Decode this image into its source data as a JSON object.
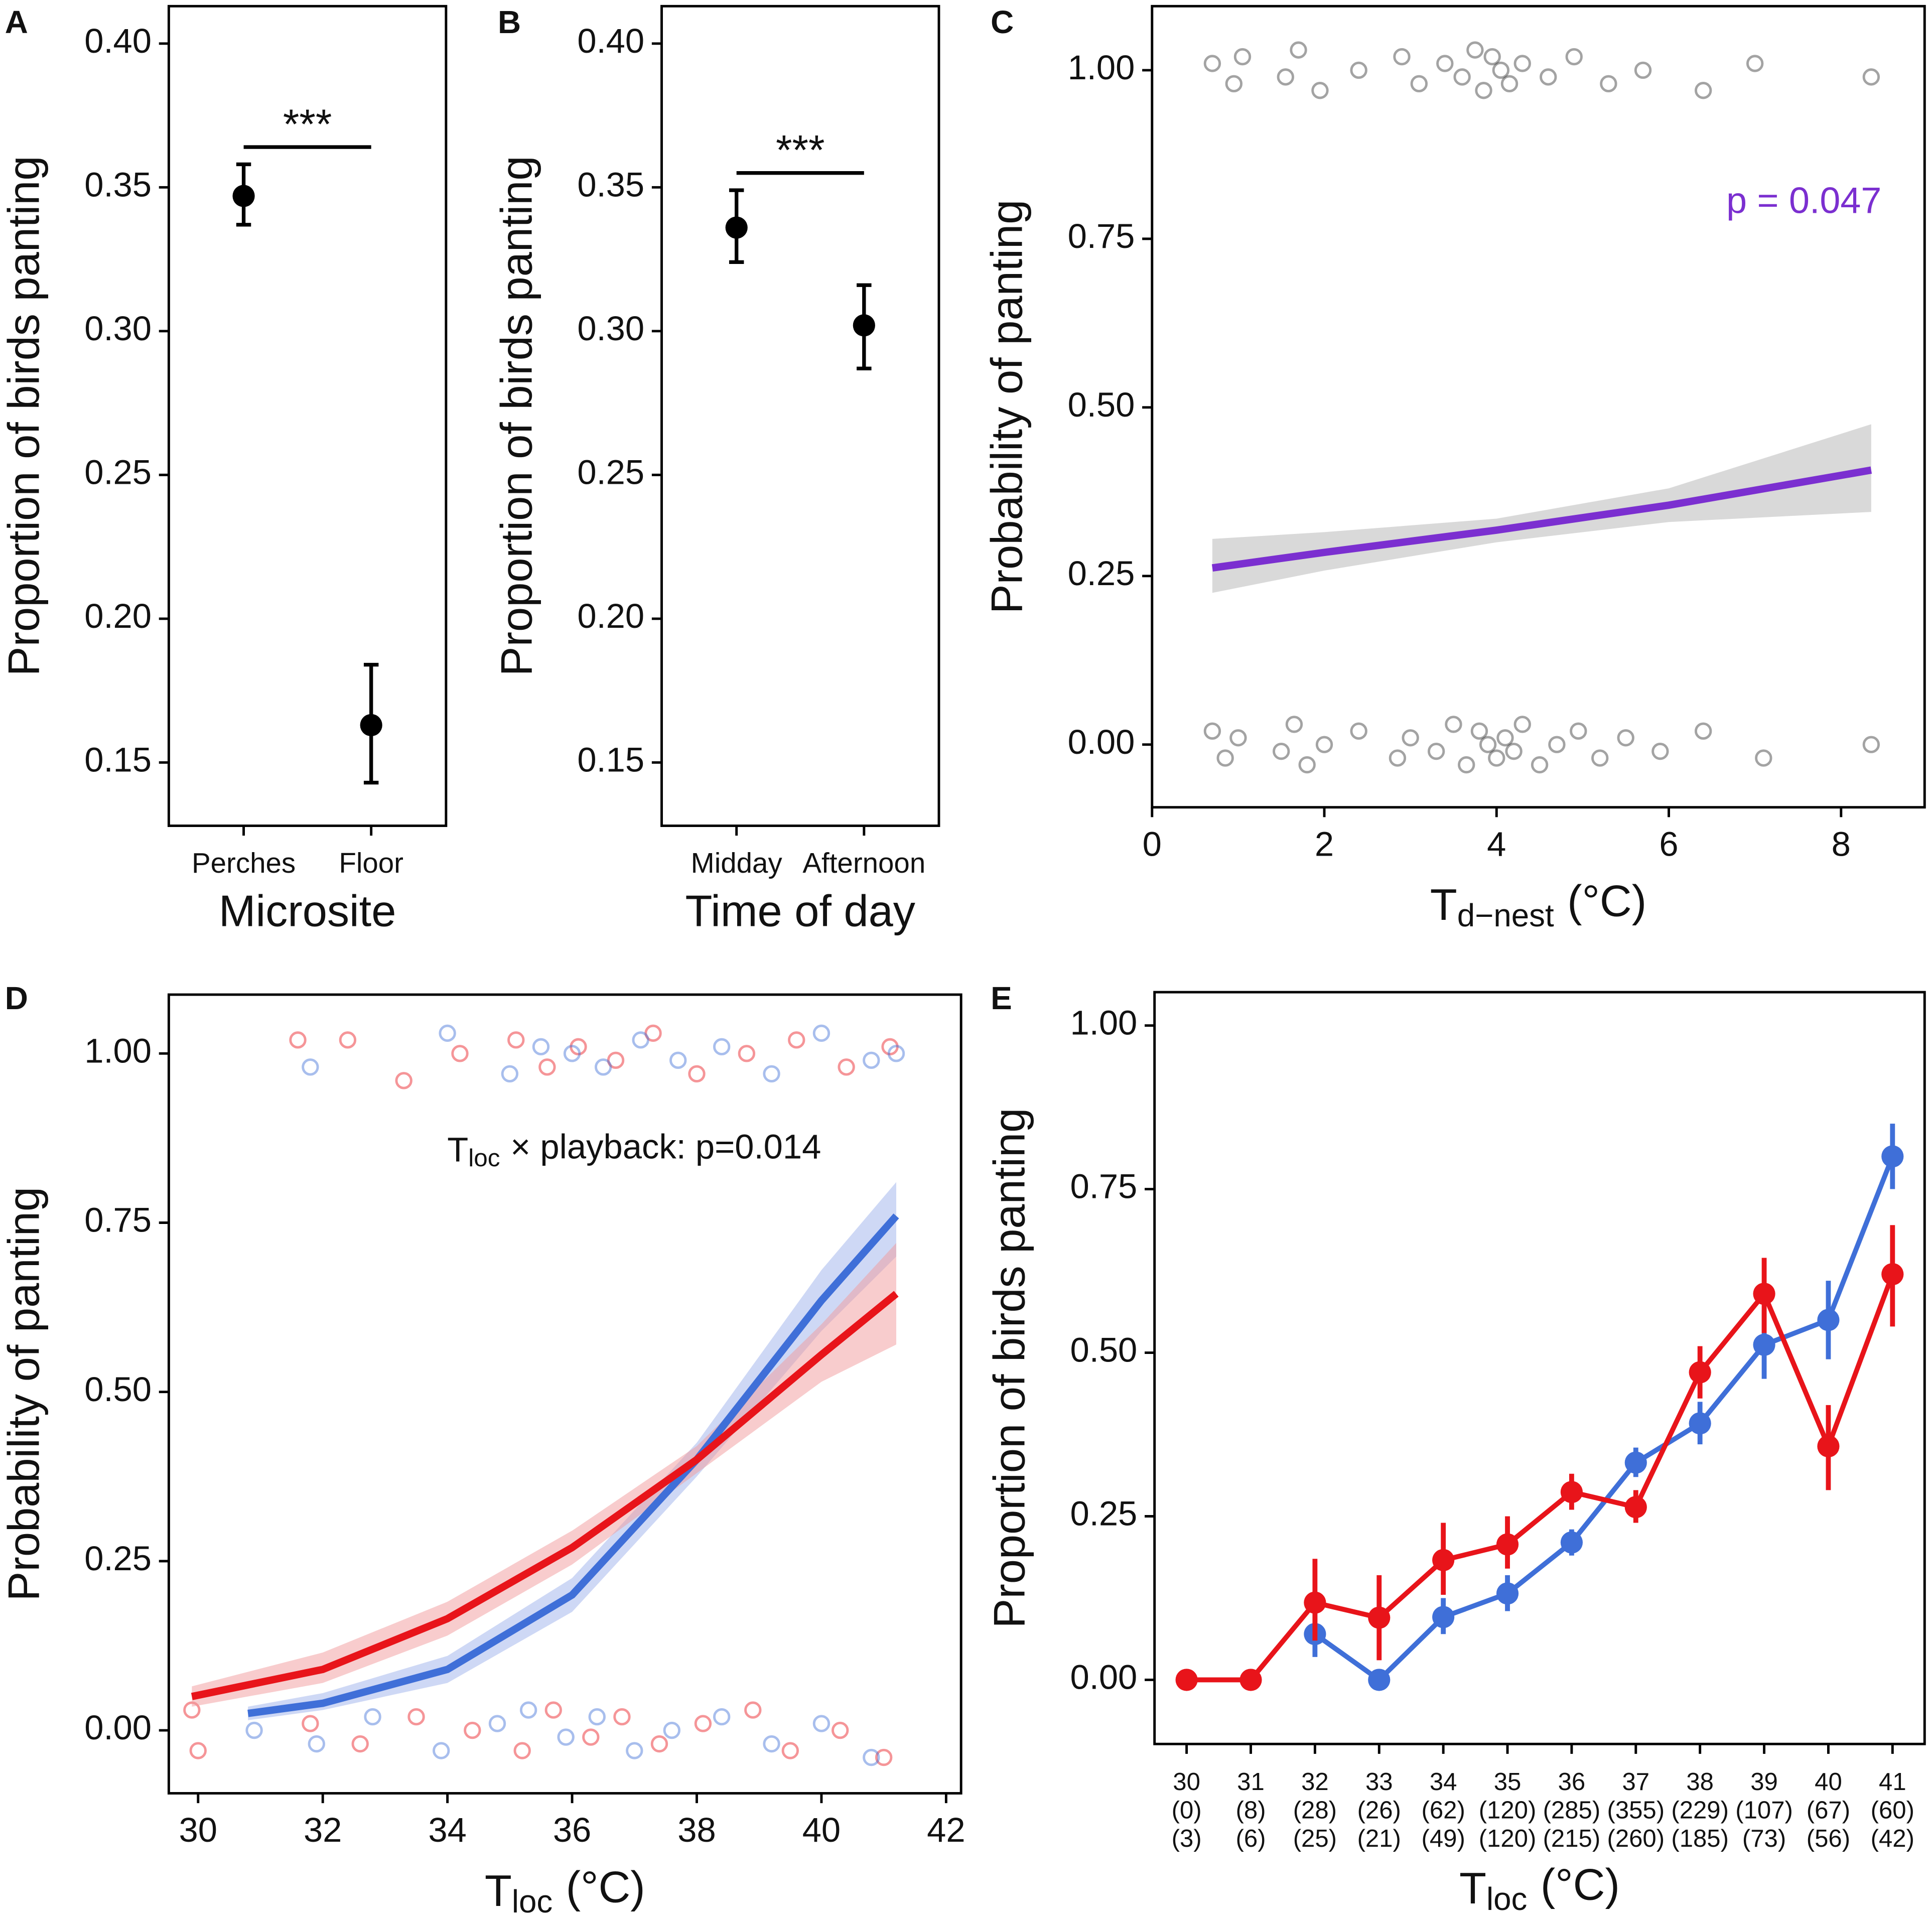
{
  "chart_data": [
    {
      "type": "pointrange",
      "panel_label": "A",
      "categories": [
        "Perches",
        "Floor"
      ],
      "values": [
        0.347,
        0.163
      ],
      "lower": [
        0.337,
        0.143
      ],
      "upper": [
        0.358,
        0.184
      ],
      "color": "#000000",
      "annotation": "***",
      "xlabel": "Microsite",
      "ylabel": "Proportion of birds panting",
      "ylim": [
        0.128,
        0.413
      ],
      "yticks": [
        {
          "value": 0.15,
          "label": "0.15"
        },
        {
          "value": 0.2,
          "label": "0.20"
        },
        {
          "value": 0.25,
          "label": "0.25"
        },
        {
          "value": 0.3,
          "label": "0.30"
        },
        {
          "value": 0.35,
          "label": "0.35"
        },
        {
          "value": 0.4,
          "label": "0.40"
        }
      ]
    },
    {
      "type": "pointrange",
      "panel_label": "B",
      "categories": [
        "Midday",
        "Afternoon"
      ],
      "values": [
        0.336,
        0.302
      ],
      "lower": [
        0.324,
        0.287
      ],
      "upper": [
        0.349,
        0.316
      ],
      "color": "#000000",
      "annotation": "***",
      "xlabel": "Time of day",
      "ylabel": "Proportion of birds panting",
      "ylim": [
        0.128,
        0.413
      ],
      "yticks": [
        {
          "value": 0.15,
          "label": "0.15"
        },
        {
          "value": 0.2,
          "label": "0.20"
        },
        {
          "value": 0.25,
          "label": "0.25"
        },
        {
          "value": 0.3,
          "label": "0.30"
        },
        {
          "value": 0.35,
          "label": "0.35"
        },
        {
          "value": 0.4,
          "label": "0.40"
        }
      ]
    },
    {
      "type": "logistic",
      "panel_label": "C",
      "xlabel": {
        "main": "T",
        "sub": "d−nest",
        "unit": "(°C)"
      },
      "ylabel": "Probability of panting",
      "xlim": [
        0,
        8.97
      ],
      "xticks": [
        0,
        2,
        4,
        6,
        8
      ],
      "ylim": [
        -0.093,
        1.095
      ],
      "yticks": [
        {
          "value": 0,
          "label": "0.00"
        },
        {
          "value": 0.25,
          "label": "0.25"
        },
        {
          "value": 0.5,
          "label": "0.50"
        },
        {
          "value": 0.75,
          "label": "0.75"
        },
        {
          "value": 1,
          "label": "1.00"
        }
      ],
      "annotation": "p = 0.047",
      "annotation_color": "#7b2fd0",
      "points": [
        {
          "color": "#333333",
          "x": [
            0.7,
            0.95,
            1.05,
            1.55,
            1.7,
            1.95,
            2.4,
            2.9,
            3.1,
            3.4,
            3.6,
            3.75,
            3.85,
            3.95,
            4.05,
            4.15,
            4.3,
            4.6,
            4.9,
            5.3,
            5.7,
            6.4,
            7.0,
            8.35,
            0.7,
            0.85,
            1.0,
            1.5,
            1.65,
            1.8,
            2.0,
            2.4,
            2.85,
            3.0,
            3.3,
            3.5,
            3.65,
            3.8,
            3.9,
            4.0,
            4.1,
            4.2,
            4.3,
            4.5,
            4.7,
            4.95,
            5.2,
            5.5,
            5.9,
            6.4,
            7.1,
            8.35
          ],
          "values": [
            1.01,
            0.98,
            1.02,
            0.99,
            1.03,
            0.97,
            1.0,
            1.02,
            0.98,
            1.01,
            0.99,
            1.03,
            0.97,
            1.02,
            1.0,
            0.98,
            1.01,
            0.99,
            1.02,
            0.98,
            1.0,
            0.97,
            1.01,
            0.99,
            0.02,
            -0.02,
            0.01,
            -0.01,
            0.03,
            -0.03,
            0.0,
            0.02,
            -0.02,
            0.01,
            -0.01,
            0.03,
            -0.03,
            0.02,
            0.0,
            -0.02,
            0.01,
            -0.01,
            0.03,
            -0.03,
            0.0,
            0.02,
            -0.02,
            0.01,
            -0.01,
            0.02,
            -0.02,
            0.0
          ]
        }
      ],
      "fits": [
        {
          "color": "#7b2fd0",
          "band_color": "#b3b3b3",
          "x": [
            0.7,
            2,
            4,
            6,
            8.35
          ],
          "values": [
            0.262,
            0.285,
            0.318,
            0.355,
            0.407
          ],
          "lower": [
            0.225,
            0.258,
            0.3,
            0.33,
            0.345
          ],
          "upper": [
            0.305,
            0.315,
            0.335,
            0.38,
            0.475
          ]
        }
      ]
    },
    {
      "type": "logistic",
      "panel_label": "D",
      "xlabel": {
        "main": "T",
        "sub": "loc",
        "unit": "(°C)"
      },
      "ylabel": "Probability of panting",
      "xlim": [
        29.53,
        42.24
      ],
      "xticks": [
        30,
        32,
        34,
        36,
        38,
        40,
        42
      ],
      "ylim": [
        -0.093,
        1.087
      ],
      "yticks": [
        {
          "value": 0,
          "label": "0.00"
        },
        {
          "value": 0.25,
          "label": "0.25"
        },
        {
          "value": 0.5,
          "label": "0.50"
        },
        {
          "value": 0.75,
          "label": "0.75"
        },
        {
          "value": 1,
          "label": "1.00"
        }
      ],
      "annotation": {
        "main": "T",
        "sub": "loc",
        "unit": "× playback: p=0.014"
      },
      "points": [
        {
          "color": "#e8141a",
          "x": [
            31.6,
            32.4,
            33.3,
            34.2,
            35.1,
            35.6,
            36.1,
            36.7,
            37.3,
            38.0,
            38.8,
            39.6,
            40.4,
            41.1,
            29.9,
            30.0,
            31.8,
            32.6,
            33.5,
            34.4,
            35.2,
            35.7,
            36.3,
            36.8,
            37.4,
            38.1,
            38.9,
            39.5,
            40.3,
            41.0
          ],
          "values": [
            1.02,
            1.02,
            0.96,
            1.0,
            1.02,
            0.98,
            1.01,
            0.99,
            1.03,
            0.97,
            1.0,
            1.02,
            0.98,
            1.01,
            0.03,
            -0.03,
            0.01,
            -0.02,
            0.02,
            0.0,
            -0.03,
            0.03,
            -0.01,
            0.02,
            -0.02,
            0.01,
            0.03,
            -0.03,
            0.0,
            -0.04
          ]
        },
        {
          "color": "#3f6fd8",
          "x": [
            31.8,
            34.0,
            35.0,
            35.5,
            36.0,
            36.5,
            37.1,
            37.7,
            38.4,
            39.2,
            40.0,
            40.8,
            41.2,
            30.9,
            31.9,
            32.8,
            33.9,
            34.8,
            35.3,
            35.9,
            36.4,
            37.0,
            37.6,
            38.4,
            39.2,
            40.0,
            40.8
          ],
          "values": [
            0.98,
            1.03,
            0.97,
            1.01,
            1.0,
            0.98,
            1.02,
            0.99,
            1.01,
            0.97,
            1.03,
            0.99,
            1.0,
            0.0,
            -0.02,
            0.02,
            -0.03,
            0.01,
            0.03,
            -0.01,
            0.02,
            -0.03,
            0.0,
            0.02,
            -0.02,
            0.01,
            -0.04
          ]
        }
      ],
      "fits": [
        {
          "color": "#3f6fd8",
          "band_color": "#9db2ec",
          "x": [
            30.8,
            32,
            34,
            36,
            38,
            40,
            41.2
          ],
          "values": [
            0.025,
            0.04,
            0.09,
            0.2,
            0.4,
            0.635,
            0.76
          ],
          "lower": [
            0.015,
            0.03,
            0.07,
            0.175,
            0.375,
            0.59,
            0.7
          ],
          "upper": [
            0.035,
            0.055,
            0.11,
            0.225,
            0.425,
            0.68,
            0.81
          ]
        },
        {
          "color": "#e8141a",
          "band_color": "#f19a9c",
          "x": [
            29.9,
            32,
            34,
            36,
            38,
            40,
            41.2
          ],
          "values": [
            0.05,
            0.09,
            0.165,
            0.27,
            0.4,
            0.555,
            0.645
          ],
          "lower": [
            0.035,
            0.07,
            0.14,
            0.245,
            0.38,
            0.515,
            0.57
          ],
          "upper": [
            0.065,
            0.115,
            0.19,
            0.295,
            0.42,
            0.6,
            0.72
          ]
        }
      ]
    },
    {
      "type": "line",
      "panel_label": "E",
      "categories": [
        "30",
        "31",
        "32",
        "33",
        "34",
        "35",
        "36",
        "37",
        "38",
        "39",
        "40",
        "41"
      ],
      "category_counts": [
        [
          "(0)",
          "(3)"
        ],
        [
          "(8)",
          "(6)"
        ],
        [
          "(28)",
          "(25)"
        ],
        [
          "(26)",
          "(21)"
        ],
        [
          "(62)",
          "(49)"
        ],
        [
          "(120)",
          "(120)"
        ],
        [
          "(285)",
          "(215)"
        ],
        [
          "(355)",
          "(260)"
        ],
        [
          "(229)",
          "(185)"
        ],
        [
          "(107)",
          "(73)"
        ],
        [
          "(67)",
          "(56)"
        ],
        [
          "(60)",
          "(42)"
        ]
      ],
      "xlabel": {
        "main": "T",
        "sub": "loc",
        "unit": "(°C)"
      },
      "ylabel": "Proportion of birds panting",
      "ylim": [
        -0.098,
        1.051
      ],
      "yticks": [
        {
          "value": 0,
          "label": "0.00"
        },
        {
          "value": 0.25,
          "label": "0.25"
        },
        {
          "value": 0.5,
          "label": "0.50"
        },
        {
          "value": 0.75,
          "label": "0.75"
        },
        {
          "value": 1,
          "label": "1.00"
        }
      ],
      "series": [
        {
          "color": "#3f6fd8",
          "values": [
            null,
            null,
            0.07,
            0.0,
            0.096,
            0.132,
            0.21,
            0.332,
            0.392,
            0.512,
            0.55,
            0.8
          ],
          "lower": [
            null,
            null,
            0.035,
            0.0,
            0.07,
            0.105,
            0.19,
            0.31,
            0.36,
            0.46,
            0.49,
            0.75
          ],
          "upper": [
            null,
            null,
            0.115,
            0.0,
            0.125,
            0.16,
            0.23,
            0.355,
            0.425,
            0.565,
            0.61,
            0.85
          ]
        },
        {
          "color": "#e8141a",
          "values": [
            0,
            0,
            0.118,
            0.095,
            0.183,
            0.207,
            0.287,
            0.264,
            0.47,
            0.59,
            0.357,
            0.62
          ],
          "lower": [
            null,
            null,
            0.06,
            0.03,
            0.13,
            0.17,
            0.26,
            0.24,
            0.43,
            0.53,
            0.29,
            0.54
          ],
          "upper": [
            null,
            null,
            0.185,
            0.16,
            0.24,
            0.25,
            0.315,
            0.29,
            0.51,
            0.645,
            0.42,
            0.695
          ]
        }
      ]
    }
  ]
}
